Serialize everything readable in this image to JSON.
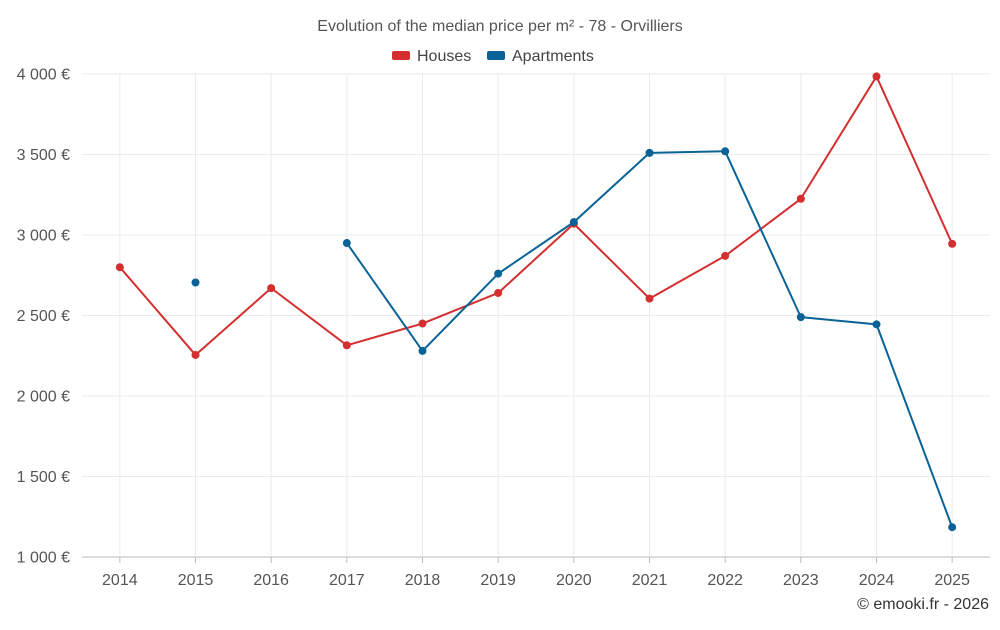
{
  "chart_data": {
    "type": "line",
    "title": "Evolution of the median price per m² - 78 - Orvilliers",
    "categories": [
      "2014",
      "2015",
      "2016",
      "2017",
      "2018",
      "2019",
      "2020",
      "2021",
      "2022",
      "2023",
      "2024",
      "2025"
    ],
    "y_ticks": [
      1000,
      1500,
      2000,
      2500,
      3000,
      3500,
      4000
    ],
    "y_tick_labels": [
      "1 000 €",
      "1 500 €",
      "2 000 €",
      "2 500 €",
      "3 000 €",
      "3 500 €",
      "4 000 €"
    ],
    "ylim": [
      1000,
      4000
    ],
    "grid": true,
    "legend_position": "top-center",
    "series": [
      {
        "name": "Houses",
        "color": "#d32f2f",
        "values": [
          2800,
          2255,
          2670,
          2315,
          2450,
          2640,
          3070,
          2605,
          2870,
          3225,
          3985,
          2945
        ]
      },
      {
        "name": "Apartments",
        "color": "#0a6396",
        "values": [
          null,
          2705,
          null,
          2950,
          2280,
          2760,
          3080,
          3510,
          3520,
          2490,
          2445,
          1185
        ]
      }
    ]
  },
  "credit": "© emooki.fr - 2026"
}
